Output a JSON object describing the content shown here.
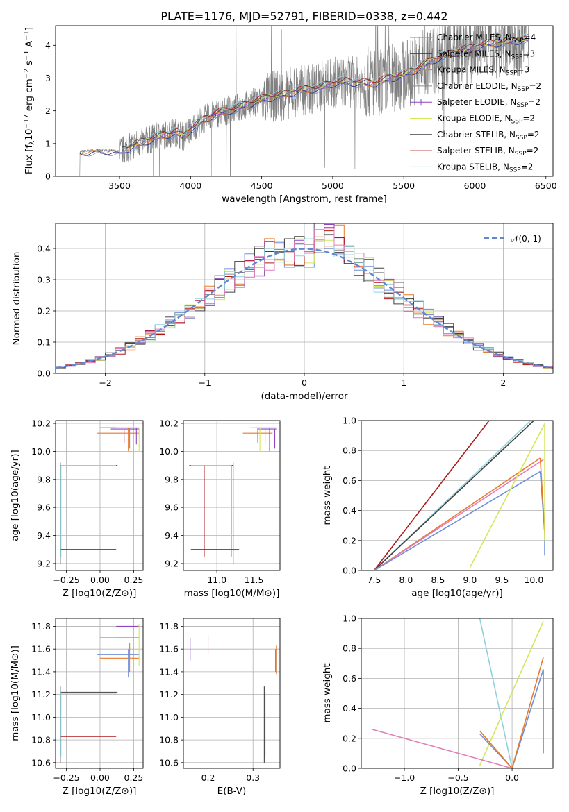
{
  "figure": {
    "title": "PLATE=1176, MJD=52791, FIBERID=0338, z=0.442"
  },
  "colors": {
    "chabrier_miles": "#6f8fd8",
    "salpeter_miles": "#1f2a80",
    "kroupa_miles": "#e87a2a",
    "chabrier_elodie": "#8a8a8a",
    "salpeter_elodie": "#8e44c4",
    "kroupa_elodie": "#d4e65c",
    "chabrier_stelib": "#404040",
    "salpeter_stelib": "#b01818",
    "kroupa_stelib": "#8fd1dc",
    "normal": "#5f87d4",
    "pink": "#e07fb8"
  },
  "chart_data": [
    {
      "id": "spectrum",
      "type": "line",
      "title": "PLATE=1176, MJD=52791, FIBERID=0338, z=0.442",
      "xlabel": "wavelength [Angstrom, rest frame]",
      "ylabel_parts": [
        "Flux [f",
        "λ",
        "10",
        "−17",
        " erg cm",
        "−2",
        " s",
        "−1",
        " A",
        "−1",
        "]"
      ],
      "xlim": [
        3050,
        6550
      ],
      "ylim": [
        0,
        4.6
      ],
      "xticks": [
        "3500",
        "4000",
        "4500",
        "5000",
        "5500",
        "6000",
        "6500"
      ],
      "yticks": [
        "0",
        "1",
        "2",
        "3",
        "4"
      ],
      "legend_position": "upper-right",
      "series": [
        {
          "name": "Chabrier MILES, N",
          "sub": "SSP",
          "suffix": "=4",
          "color": "#6f8fd8"
        },
        {
          "name": "Salpeter MILES, N",
          "sub": "SSP",
          "suffix": "=3",
          "color": "#1f2a80"
        },
        {
          "name": "Kroupa MILES, N",
          "sub": "SSP",
          "suffix": "=3",
          "color": "#e87a2a"
        },
        {
          "name": "Chabrier ELODIE, N",
          "sub": "SSP",
          "suffix": "=2",
          "color": "#8a8a8a"
        },
        {
          "name": "Salpeter ELODIE, N",
          "sub": "SSP",
          "suffix": "=2",
          "color": "#8e44c4"
        },
        {
          "name": "Kroupa ELODIE, N",
          "sub": "SSP",
          "suffix": "=2",
          "color": "#d4e65c"
        },
        {
          "name": "Chabrier STELIB, N",
          "sub": "SSP",
          "suffix": "=2",
          "color": "#404040"
        },
        {
          "name": "Salpeter STELIB, N",
          "sub": "SSP",
          "suffix": "=2",
          "color": "#b01818"
        },
        {
          "name": "Kroupa STELIB, N",
          "sub": "SSP",
          "suffix": "=2",
          "color": "#8fd1dc"
        }
      ],
      "model_points": [
        [
          3220,
          0.75
        ],
        [
          3300,
          0.78
        ],
        [
          3400,
          0.8
        ],
        [
          3500,
          0.75
        ],
        [
          3600,
          0.95
        ],
        [
          3700,
          1.1
        ],
        [
          3800,
          1.25
        ],
        [
          3900,
          1.35
        ],
        [
          3950,
          1.2
        ],
        [
          4000,
          1.45
        ],
        [
          4100,
          1.75
        ],
        [
          4200,
          1.95
        ],
        [
          4300,
          2.05
        ],
        [
          4400,
          2.2
        ],
        [
          4500,
          2.35
        ],
        [
          4600,
          2.45
        ],
        [
          4700,
          2.55
        ],
        [
          4800,
          2.65
        ],
        [
          4900,
          2.7
        ],
        [
          5000,
          2.85
        ],
        [
          5100,
          2.9
        ],
        [
          5200,
          2.85
        ],
        [
          5300,
          2.85
        ],
        [
          5400,
          3.0
        ],
        [
          5500,
          3.1
        ],
        [
          5600,
          3.3
        ],
        [
          5700,
          3.55
        ],
        [
          5800,
          3.7
        ],
        [
          5900,
          3.85
        ],
        [
          6000,
          3.95
        ],
        [
          6100,
          4.05
        ],
        [
          6200,
          4.1
        ],
        [
          6380,
          4.2
        ]
      ],
      "data_range": [
        3220,
        6380
      ]
    },
    {
      "id": "residuals",
      "type": "histogram",
      "xlabel": "(data-model)/error",
      "ylabel": "Normed distribution",
      "xlim": [
        -2.5,
        2.5
      ],
      "ylim": [
        0,
        0.48
      ],
      "xticks": [
        "−2",
        "−1",
        "0",
        "1",
        "2"
      ],
      "yticks": [
        "0.0",
        "0.1",
        "0.2",
        "0.3",
        "0.4"
      ],
      "legend": "𝒩(0, 1)",
      "legend_position": "upper-right",
      "bin_width": 0.1,
      "series_colors": [
        "#6f8fd8",
        "#e87a2a",
        "#d4e65c",
        "#8e44c4",
        "#8a8a8a",
        "#404040",
        "#b01818",
        "#8fd1dc",
        "#e07fb8"
      ]
    },
    {
      "id": "age-vs-Z",
      "type": "scatter",
      "xlabel": "Z [log10(Z/Z⊙)]",
      "ylabel": "age  [log10(age/yr)]",
      "xlim": [
        -0.33,
        0.32
      ],
      "ylim": [
        9.15,
        10.22
      ],
      "xticks": [
        "−0.25",
        "0.00",
        "0.25"
      ],
      "yticks": [
        "9.2",
        "9.4",
        "9.6",
        "9.8",
        "10.0",
        "10.2"
      ]
    },
    {
      "id": "age-vs-mass",
      "type": "scatter",
      "xlabel": "mass [log10(M/M⊙)]",
      "xlim": [
        10.55,
        11.85
      ],
      "ylim": [
        9.15,
        10.22
      ],
      "xticks": [
        "11.0",
        "11.5"
      ],
      "yticks": [
        "9.2",
        "9.4",
        "9.6",
        "9.8",
        "10.0",
        "10.2"
      ]
    },
    {
      "id": "weight-vs-age",
      "type": "line",
      "xlabel": "age  [log10(age/yr)]",
      "ylabel": "mass weight",
      "xlim": [
        7.3,
        10.3
      ],
      "ylim": [
        0,
        1.0
      ],
      "xticks": [
        "7.5",
        "8.0",
        "8.5",
        "9.0",
        "9.5",
        "10.0"
      ],
      "yticks": [
        "0.0",
        "0.2",
        "0.4",
        "0.6",
        "0.8",
        "1.0"
      ]
    },
    {
      "id": "mass-vs-Z",
      "type": "scatter",
      "xlabel": "Z [log10(Z/Z⊙)]",
      "ylabel": "mass [log10(M/M⊙)]",
      "xlim": [
        -0.33,
        0.32
      ],
      "ylim": [
        10.55,
        11.87
      ],
      "xticks": [
        "−0.25",
        "0.00",
        "0.25"
      ],
      "yticks": [
        "10.6",
        "10.8",
        "11.0",
        "11.2",
        "11.4",
        "11.6",
        "11.8"
      ]
    },
    {
      "id": "mass-vs-ebv",
      "type": "scatter",
      "xlabel": "E(B-V)",
      "xlim": [
        0.145,
        0.36
      ],
      "ylim": [
        10.55,
        11.87
      ],
      "xticks": [
        "0.2",
        "0.3"
      ],
      "yticks": [
        "10.6",
        "10.8",
        "11.0",
        "11.2",
        "11.4",
        "11.6",
        "11.8"
      ]
    },
    {
      "id": "weight-vs-Z",
      "type": "line",
      "xlabel": "Z [log10(Z/Z⊙)]",
      "ylabel": "mass weight",
      "xlim": [
        -1.4,
        0.38
      ],
      "ylim": [
        0,
        1.0
      ],
      "xticks": [
        "−1.0",
        "−0.5",
        "0.0"
      ],
      "yticks": [
        "0.0",
        "0.2",
        "0.4",
        "0.6",
        "0.8",
        "1.0"
      ]
    }
  ]
}
